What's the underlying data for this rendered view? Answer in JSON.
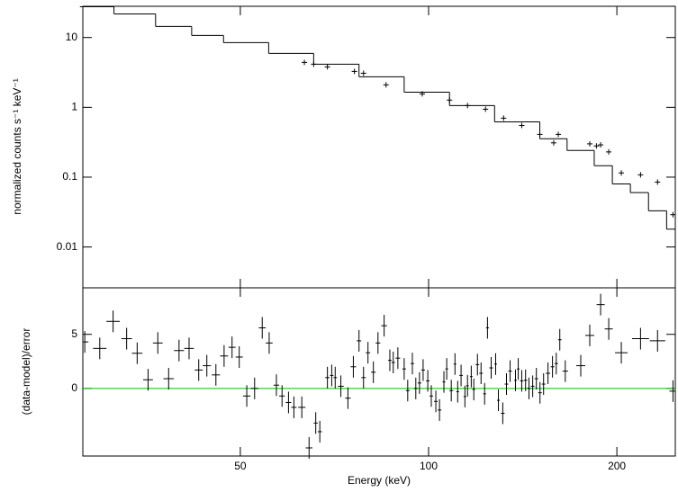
{
  "chart_data": [
    {
      "type": "spectrum",
      "y_label": "normalized counts s⁻¹ keV⁻¹",
      "log_x": true,
      "log_y": true,
      "xlim": [
        28,
        248
      ],
      "xticks": [
        50,
        100,
        200
      ],
      "ylim": [
        0.0026,
        28
      ],
      "yticks": [
        0.01,
        0.1,
        1,
        10
      ],
      "color": "#000000",
      "model_x": [
        27.7,
        31.4,
        36.6,
        41.8,
        47.0,
        55.5,
        65.5,
        77.4,
        91.4,
        108.0,
        127.5,
        150.6,
        166.5,
        184.0,
        196.7,
        210.2,
        224.7,
        240.2
      ],
      "model_values": [
        27.6,
        21.8,
        14.4,
        10.7,
        8.45,
        5.92,
        4.15,
        2.74,
        1.65,
        1.06,
        0.62,
        0.355,
        0.241,
        0.146,
        0.08,
        0.06,
        0.033,
        0.018
      ],
      "x": [
        63.3,
        65.5,
        68.9,
        76.1,
        78.7,
        85.5,
        97.7,
        108.0,
        115.4,
        123.3,
        131.8,
        140.9,
        150.6,
        158.5,
        161.2,
        181.0,
        185.5,
        188.4,
        194.1,
        203.3,
        218.2,
        232.3,
        245.9
      ],
      "values": [
        4.4,
        4.15,
        3.8,
        3.27,
        3.08,
        2.1,
        1.56,
        1.27,
        1.06,
        0.94,
        0.7,
        0.55,
        0.41,
        0.31,
        0.41,
        0.3,
        0.28,
        0.29,
        0.23,
        0.115,
        0.108,
        0.085,
        0.029
      ]
    },
    {
      "type": "residual",
      "x_label": "Energy (keV)",
      "y_label": "(data-model)/error",
      "log_x": true,
      "xlim": [
        28,
        248
      ],
      "xticks": [
        50,
        100,
        200
      ],
      "ylim": [
        -6.25,
        9.3
      ],
      "yticks": [
        0,
        5
      ],
      "color": "#000000",
      "zero_color": "#00c000",
      "error": 1,
      "x": [
        28.2,
        29.8,
        31.3,
        32.9,
        34.2,
        35.6,
        36.9,
        38.4,
        39.9,
        41.4,
        42.9,
        44.2,
        45.7,
        47.1,
        48.5,
        49.8,
        51.2,
        52.7,
        54.2,
        55.6,
        57.1,
        58.3,
        59.7,
        60.9,
        62.7,
        64.4,
        66.0,
        67.0,
        68.9,
        70.0,
        70.9,
        72.4,
        74.3,
        75.8,
        77.4,
        78.7,
        80.0,
        81.6,
        83.0,
        84.9,
        86.7,
        87.8,
        89.3,
        91.4,
        92.6,
        94.2,
        95.4,
        96.7,
        98.0,
        99.7,
        101.0,
        102.7,
        104.1,
        105.8,
        106.9,
        108.7,
        110.2,
        111.3,
        112.7,
        114.3,
        115.4,
        117.0,
        118.1,
        119.7,
        121.3,
        122.9,
        124.2,
        125.9,
        128.0,
        129.3,
        131.4,
        133.2,
        135.0,
        137.7,
        139.1,
        140.9,
        142.9,
        144.7,
        146.7,
        148.7,
        150.7,
        152.7,
        155.2,
        157.8,
        160.0,
        162.1,
        165.4,
        175.1,
        181.0,
        188.4,
        194.1,
        203.3,
        218.2,
        232.3,
        245.9
      ],
      "values": [
        4.3,
        3.7,
        6.2,
        4.6,
        3.25,
        0.8,
        4.2,
        0.9,
        3.5,
        3.7,
        1.7,
        2.1,
        1.25,
        3.0,
        3.8,
        2.9,
        -0.7,
        0.0,
        5.6,
        4.2,
        0.3,
        -0.7,
        -1.3,
        -1.75,
        -1.75,
        -5.5,
        -3.2,
        -4.0,
        1.0,
        1.2,
        1.0,
        0.2,
        -0.9,
        2.0,
        4.4,
        1.0,
        3.3,
        1.5,
        4.2,
        5.8,
        2.6,
        2.4,
        2.8,
        1.8,
        -0.2,
        2.3,
        0.0,
        0.5,
        1.7,
        0.7,
        -0.7,
        -1.2,
        -2.0,
        0.6,
        1.8,
        -0.2,
        2.25,
        -0.3,
        1.2,
        -0.75,
        0.25,
        1.1,
        -0.1,
        2.2,
        1.4,
        -0.5,
        5.6,
        1.9,
        2.25,
        -1.1,
        -2.3,
        0.4,
        1.6,
        0.75,
        1.8,
        0.7,
        0.75,
        0.0,
        0.2,
        0.9,
        -0.4,
        0.4,
        1.4,
        2.0,
        2.3,
        4.5,
        1.6,
        2.1,
        4.9,
        7.75,
        5.5,
        3.3,
        4.6,
        4.4,
        -0.25
      ]
    }
  ]
}
